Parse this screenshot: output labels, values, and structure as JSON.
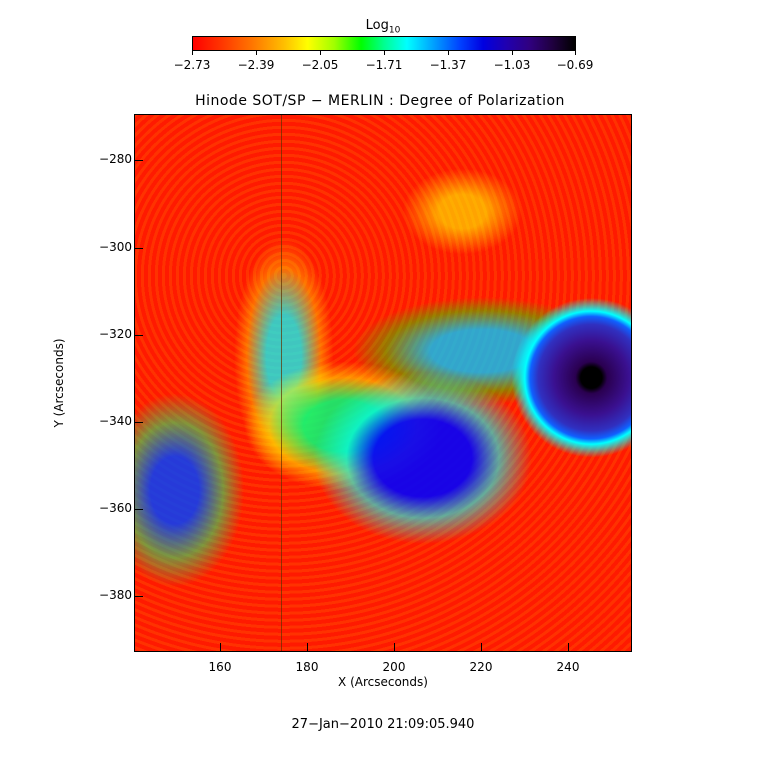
{
  "colorbar": {
    "title": "Log",
    "title_sub": "10",
    "tick_labels": [
      "−2.73",
      "−2.39",
      "−2.05",
      "−1.71",
      "−1.37",
      "−1.03",
      "−0.69"
    ]
  },
  "plot": {
    "title": "Hinode SOT/SP − MERLIN : Degree of Polarization",
    "x_axis_title": "X (Arcseconds)",
    "y_axis_title": "Y (Arcseconds)",
    "x_tick_labels": [
      "160",
      "180",
      "200",
      "220",
      "240"
    ],
    "y_tick_labels": [
      "−280",
      "−300",
      "−320",
      "−340",
      "−360",
      "−380"
    ]
  },
  "footer": {
    "timestamp": "27−Jan−2010 21:09:05.940"
  }
}
